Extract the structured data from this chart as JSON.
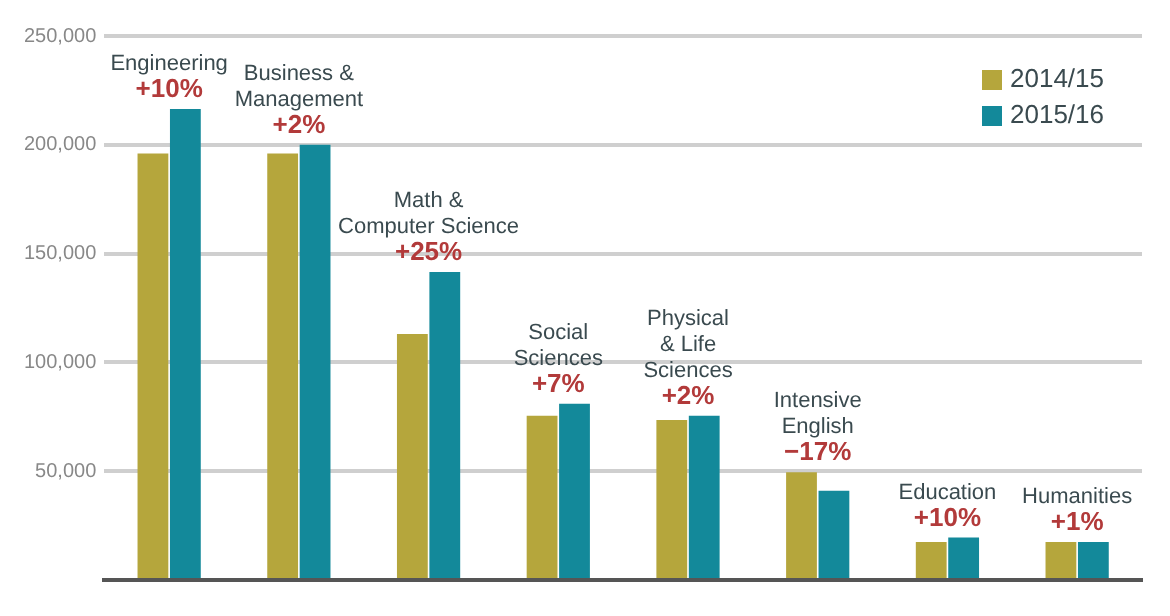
{
  "chart_data": {
    "type": "bar",
    "categories": [
      "Engineering",
      "Business &\nManagement",
      "Math &\nComputer Science",
      "Social\nSciences",
      "Physical\n& Life\nSciences",
      "Intensive\nEnglish",
      "Education",
      "Humanities"
    ],
    "series": [
      {
        "name": "2014/15",
        "color": "#b5a63c",
        "values": [
          196000,
          196000,
          113000,
          75500,
          73500,
          49500,
          17500,
          17500
        ]
      },
      {
        "name": "2015/16",
        "color": "#13899a",
        "values": [
          216500,
          200000,
          141500,
          81000,
          75500,
          41000,
          19500,
          17500
        ]
      }
    ],
    "annotations": [
      {
        "text": "+10%",
        "x": "Engineering",
        "y": 216500
      },
      {
        "text": "+2%",
        "x": "Business &\nManagement",
        "y": 200000
      },
      {
        "text": "+25%",
        "x": "Math &\nComputer Science",
        "y": 141500
      },
      {
        "text": "+7%",
        "x": "Social\nSciences",
        "y": 81000
      },
      {
        "text": "+2%",
        "x": "Physical\n& Life\nSciences",
        "y": 75500
      },
      {
        "text": "−17%",
        "x": "Intensive\nEnglish",
        "y": 49500
      },
      {
        "text": "+10%",
        "x": "Education",
        "y": 19500
      },
      {
        "text": "+1%",
        "x": "Humanities",
        "y": 17500
      }
    ],
    "ylim": [
      0,
      250000
    ],
    "yticks": [
      {
        "value": 0,
        "label": null
      },
      {
        "value": 50000,
        "label": "50,000"
      },
      {
        "value": 100000,
        "label": "100,000"
      },
      {
        "value": 150000,
        "label": "150,000"
      },
      {
        "value": 200000,
        "label": "200,000"
      },
      {
        "value": 250000,
        "label": "250,000"
      }
    ],
    "grid": "y",
    "legend": "top right",
    "tick_labels": "y"
  }
}
